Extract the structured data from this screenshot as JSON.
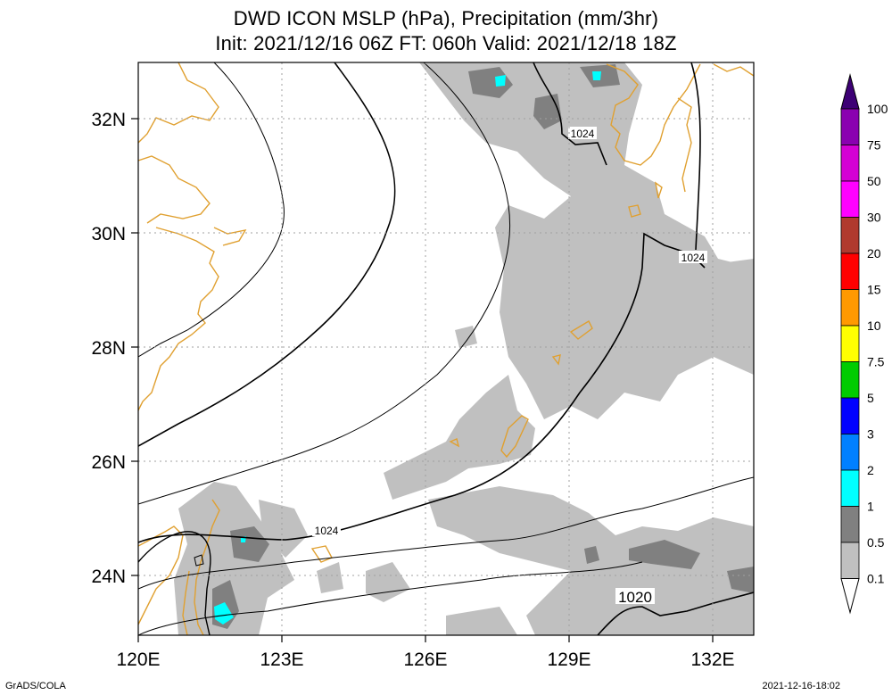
{
  "title": {
    "line1": "DWD ICON MSLP (hPa), Precipitation (mm/3hr)",
    "line2": "Init: 2021/12/16 06Z  FT: 060h  Valid: 2021/12/18 18Z"
  },
  "map": {
    "lon_labels": [
      "120E",
      "123E",
      "126E",
      "129E",
      "132E"
    ],
    "lat_labels": [
      "32N",
      "30N",
      "28N",
      "26N",
      "24N"
    ],
    "contour_labels": [
      "1024",
      "1024",
      "1024",
      "1020"
    ]
  },
  "colorbar": {
    "labels": [
      "100",
      "75",
      "50",
      "30",
      "20",
      "15",
      "10",
      "7.5",
      "5",
      "3",
      "2",
      "1",
      "0.5",
      "0.1"
    ],
    "colors": [
      "#3d0075",
      "#8a00b0",
      "#d400d4",
      "#ff00ff",
      "#b03a2e",
      "#ff0000",
      "#ff9900",
      "#ffff00",
      "#00cc00",
      "#0000ff",
      "#0080ff",
      "#00ffff",
      "#808080",
      "#c0c0c0",
      "#ffffff"
    ]
  },
  "footer": {
    "left": "GrADS/COLA",
    "right": "2021-12-16-18:02"
  }
}
